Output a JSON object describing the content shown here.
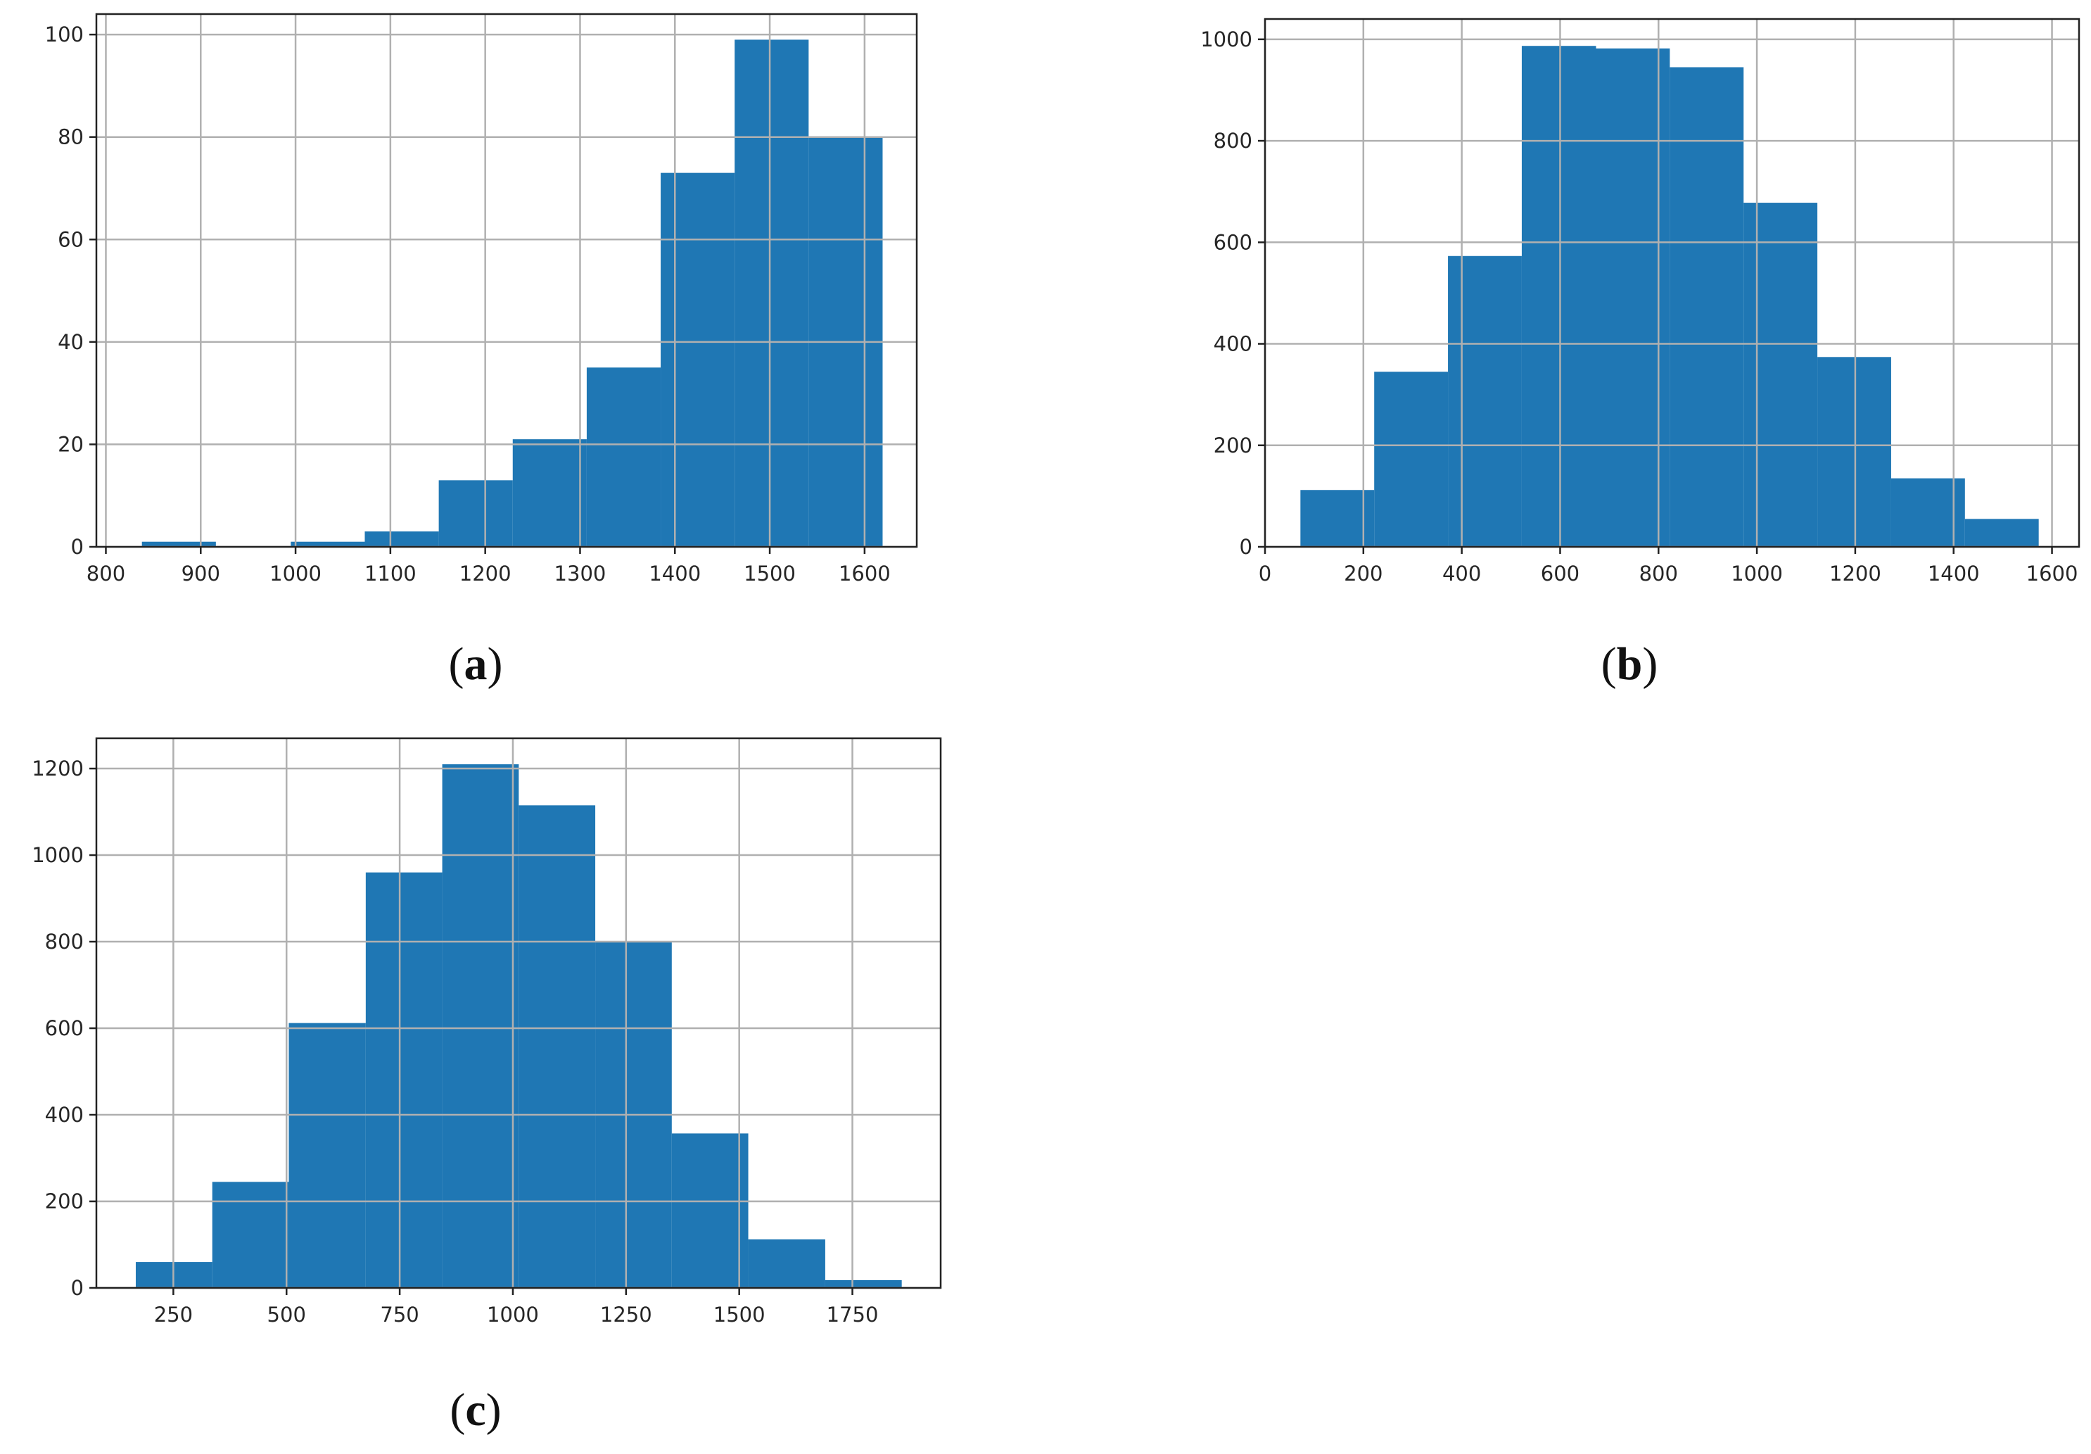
{
  "chart_data": [
    {
      "type": "bar",
      "panel_label": "(a)",
      "title": "",
      "xlabel": "",
      "ylabel": "",
      "grid": true,
      "bar_color": "#1f77b4",
      "xlim": [
        790,
        1655
      ],
      "ylim": [
        0,
        104
      ],
      "xticks": [
        800,
        900,
        1000,
        1100,
        1200,
        1300,
        1400,
        1500,
        1600
      ],
      "yticks": [
        0,
        20,
        40,
        60,
        80,
        100
      ],
      "bins": [
        {
          "start": 838,
          "end": 916,
          "count": 1
        },
        {
          "start": 916,
          "end": 995,
          "count": 0
        },
        {
          "start": 995,
          "end": 1073,
          "count": 1
        },
        {
          "start": 1073,
          "end": 1151,
          "count": 3
        },
        {
          "start": 1151,
          "end": 1229,
          "count": 13
        },
        {
          "start": 1229,
          "end": 1307,
          "count": 21
        },
        {
          "start": 1307,
          "end": 1385,
          "count": 35
        },
        {
          "start": 1385,
          "end": 1463,
          "count": 73
        },
        {
          "start": 1463,
          "end": 1541,
          "count": 99
        },
        {
          "start": 1541,
          "end": 1619,
          "count": 80
        }
      ]
    },
    {
      "type": "bar",
      "panel_label": "(b)",
      "title": "",
      "xlabel": "",
      "ylabel": "",
      "grid": true,
      "bar_color": "#1f77b4",
      "xlim": [
        0,
        1655
      ],
      "ylim": [
        0,
        1040
      ],
      "xticks": [
        0,
        200,
        400,
        600,
        800,
        1000,
        1200,
        1400,
        1600
      ],
      "yticks": [
        0,
        200,
        400,
        600,
        800,
        1000
      ],
      "bins": [
        {
          "start": 72,
          "end": 222,
          "count": 112
        },
        {
          "start": 222,
          "end": 372,
          "count": 345
        },
        {
          "start": 372,
          "end": 522,
          "count": 573
        },
        {
          "start": 522,
          "end": 673,
          "count": 987
        },
        {
          "start": 673,
          "end": 823,
          "count": 982
        },
        {
          "start": 823,
          "end": 973,
          "count": 945
        },
        {
          "start": 973,
          "end": 1123,
          "count": 678
        },
        {
          "start": 1123,
          "end": 1273,
          "count": 374
        },
        {
          "start": 1273,
          "end": 1423,
          "count": 135
        },
        {
          "start": 1423,
          "end": 1573,
          "count": 55
        }
      ]
    },
    {
      "type": "bar",
      "panel_label": "(c)",
      "title": "",
      "xlabel": "",
      "ylabel": "",
      "grid": true,
      "bar_color": "#1f77b4",
      "xlim": [
        80,
        1945
      ],
      "ylim": [
        0,
        1270
      ],
      "xticks": [
        250,
        500,
        750,
        1000,
        1250,
        1500,
        1750
      ],
      "yticks": [
        0,
        200,
        400,
        600,
        800,
        1000,
        1200
      ],
      "bins": [
        {
          "start": 167,
          "end": 336,
          "count": 60
        },
        {
          "start": 336,
          "end": 505,
          "count": 245
        },
        {
          "start": 505,
          "end": 675,
          "count": 612
        },
        {
          "start": 675,
          "end": 844,
          "count": 960
        },
        {
          "start": 844,
          "end": 1013,
          "count": 1210
        },
        {
          "start": 1013,
          "end": 1182,
          "count": 1115
        },
        {
          "start": 1182,
          "end": 1351,
          "count": 800
        },
        {
          "start": 1351,
          "end": 1520,
          "count": 357
        },
        {
          "start": 1520,
          "end": 1690,
          "count": 112
        },
        {
          "start": 1690,
          "end": 1859,
          "count": 18
        }
      ]
    }
  ]
}
